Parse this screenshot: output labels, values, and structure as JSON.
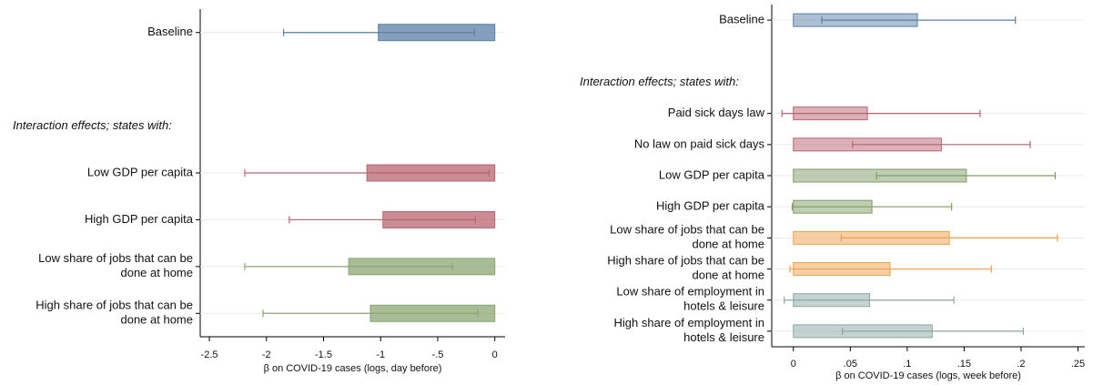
{
  "chart_data": [
    {
      "type": "hbar_errorbar",
      "categories": [
        "Baseline",
        null,
        "Interaction effects; states with:",
        "Low GDP per capita",
        "High GDP per capita",
        [
          "Low share of jobs that can be",
          "done at home"
        ],
        [
          "High share of jobs that can be",
          "done at home"
        ]
      ],
      "values": [
        -1.02,
        null,
        null,
        -1.12,
        -0.98,
        -1.28,
        -1.09
      ],
      "ci_low": [
        -1.85,
        null,
        null,
        -2.19,
        -1.8,
        -2.19,
        -2.03
      ],
      "ci_high": [
        -0.18,
        null,
        null,
        -0.05,
        -0.17,
        -0.37,
        -0.15
      ],
      "colors": [
        "#5b7fa6",
        null,
        null,
        "#b8646f",
        "#b8646f",
        "#8ba672",
        "#8ba672"
      ],
      "xlabel": "β on COVID-19 cases (logs, day before)",
      "xlim": [
        -2.58,
        0.09
      ],
      "xticks": [
        {
          "value": -2.5,
          "label": "-2.5"
        },
        -2,
        {
          "value": -1.5,
          "label": "-1.5"
        },
        -1,
        {
          "value": -0.5,
          "label": "-.5"
        },
        0
      ],
      "grid": true
    },
    {
      "type": "hbar_errorbar",
      "categories": [
        "Baseline",
        null,
        "Interaction effects; states with:",
        "Paid sick days law",
        "No law on paid sick days",
        "Low GDP per capita",
        "High GDP per capita",
        [
          "Low share of jobs that can be",
          "done at home"
        ],
        [
          "High share of jobs that can be",
          "done at home"
        ],
        [
          "Low share of employment in",
          "hotels & leisure"
        ],
        [
          "High share of employment in",
          "hotels & leisure"
        ]
      ],
      "values": [
        0.109,
        null,
        null,
        0.065,
        0.13,
        0.152,
        0.069,
        0.137,
        0.085,
        0.067,
        0.122
      ],
      "ci_low": [
        0.025,
        null,
        null,
        -0.01,
        0.052,
        0.073,
        -0.001,
        0.042,
        -0.003,
        -0.008,
        0.043
      ],
      "ci_high": [
        0.195,
        null,
        null,
        0.164,
        0.208,
        0.23,
        0.139,
        0.232,
        0.174,
        0.141,
        0.202
      ],
      "colors": [
        "#5b7fa6",
        null,
        null,
        "#b8646f",
        "#b8646f",
        "#7f9c66",
        "#7f9c66",
        "#f0a04b",
        "#f0a04b",
        "#8aa8a0",
        "#8aa8a0"
      ],
      "xlabel": "β on COVID-19 cases (logs, week before)",
      "xlim": [
        -0.019,
        0.256
      ],
      "xticks": [
        0,
        {
          "value": 0.05,
          "label": ".05"
        },
        {
          "value": 0.1,
          "label": ".1"
        },
        {
          "value": 0.15,
          "label": ".15"
        },
        {
          "value": 0.2,
          "label": ".2"
        },
        {
          "value": 0.25,
          "label": ".25"
        }
      ],
      "grid": true
    }
  ]
}
